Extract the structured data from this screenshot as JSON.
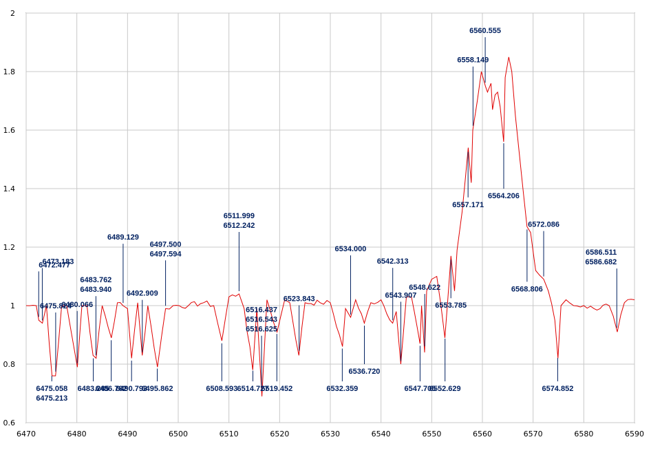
{
  "colors": {
    "spectrum": "#e00000",
    "annotation": "#002060",
    "grid": "#c8c8c8",
    "axis": "#000000"
  },
  "chart_data": {
    "type": "line",
    "title": "",
    "xlabel": "",
    "ylabel": "",
    "xlim": [
      6470,
      6590
    ],
    "ylim": [
      0.6,
      2.0
    ],
    "grid": true,
    "x_ticks": [
      "6470",
      "6480",
      "6490",
      "6500",
      "6510",
      "6520",
      "6530",
      "6540",
      "6550",
      "6560",
      "6570",
      "6580",
      "6590"
    ],
    "y_ticks": [
      "0.6",
      "0.8",
      "1",
      "1.2",
      "1.4",
      "1.6",
      "1.8",
      "2"
    ],
    "series": [
      {
        "name": "",
        "x": [
          6470,
          6472,
          6472.5,
          6473.2,
          6474,
          6475.1,
          6475.8,
          6477,
          6478,
          6480.1,
          6481,
          6482,
          6483.2,
          6483.8,
          6485,
          6486.8,
          6488,
          6489.1,
          6490,
          6490.8,
          6492,
          6492.9,
          6494,
          6495.9,
          6497.5,
          6499,
          6502,
          6505,
          6507,
          6508.6,
          6510,
          6512,
          6513,
          6514.7,
          6515.5,
          6516.5,
          6517.5,
          6519.5,
          6521,
          6522,
          6523.8,
          6525,
          6528,
          6530,
          6532.4,
          6533,
          6534,
          6535,
          6536.7,
          6538,
          6540,
          6542.3,
          6543,
          6543.9,
          6545,
          6546,
          6547.7,
          6548,
          6548.6,
          6549,
          6550,
          6551,
          6552.6,
          6553.8,
          6554.5,
          6555,
          6556,
          6557.2,
          6557.8,
          6558.1,
          6559,
          6559.8,
          6560.6,
          6561,
          6561.7,
          6562,
          6562.5,
          6563,
          6563.5,
          6564.2,
          6564.5,
          6565.2,
          6565.8,
          6566.5,
          6568,
          6568.8,
          6569.5,
          6570.5,
          6572.1,
          6573,
          6574.3,
          6574.9,
          6575.5,
          6576.5,
          6578,
          6580,
          6582,
          6585,
          6586.6,
          6588,
          6590
        ],
        "values": [
          1.0,
          1.0,
          0.95,
          0.94,
          1.0,
          0.76,
          0.76,
          1.0,
          1.0,
          0.79,
          1.0,
          1.0,
          0.83,
          0.82,
          1.0,
          0.89,
          1.01,
          1.0,
          0.99,
          0.82,
          1.01,
          0.83,
          1.0,
          0.79,
          0.99,
          1.0,
          1.0,
          1.01,
          1.0,
          0.88,
          1.03,
          1.04,
          0.99,
          0.78,
          0.99,
          0.69,
          1.02,
          0.91,
          1.02,
          1.01,
          0.83,
          1.01,
          1.01,
          1.01,
          0.86,
          0.99,
          0.96,
          1.02,
          0.94,
          1.01,
          1.02,
          0.94,
          0.98,
          0.8,
          1.03,
          1.03,
          0.87,
          1.0,
          0.84,
          1.05,
          1.09,
          1.1,
          0.89,
          1.17,
          1.05,
          1.19,
          1.32,
          1.54,
          1.42,
          1.6,
          1.7,
          1.8,
          1.75,
          1.73,
          1.76,
          1.67,
          1.72,
          1.73,
          1.68,
          1.56,
          1.78,
          1.85,
          1.8,
          1.65,
          1.4,
          1.27,
          1.25,
          1.12,
          1.09,
          1.05,
          0.95,
          0.82,
          1.0,
          1.02,
          1.0,
          1.0,
          0.99,
          1.0,
          0.91,
          1.01,
          1.02
        ]
      }
    ],
    "annotations": [
      {
        "x": 6472.477,
        "lines": [
          "6472.477"
        ]
      },
      {
        "x": 6473.183,
        "lines": [
          "6473.183"
        ]
      },
      {
        "x": 6475.824,
        "lines": [
          "6475.824"
        ]
      },
      {
        "x": 6475.058,
        "lines": [
          "6475.058",
          "6475.213"
        ]
      },
      {
        "x": 6480.066,
        "lines": [
          "6480.066"
        ]
      },
      {
        "x": 6483.762,
        "lines": [
          "6483.762",
          "6483.940"
        ]
      },
      {
        "x": 6483.245,
        "lines": [
          "6483.245"
        ]
      },
      {
        "x": 6486.782,
        "lines": [
          "6486.782"
        ]
      },
      {
        "x": 6489.129,
        "lines": [
          "6489.129"
        ]
      },
      {
        "x": 6490.793,
        "lines": [
          "6490.793"
        ]
      },
      {
        "x": 6492.909,
        "lines": [
          "6492.909"
        ]
      },
      {
        "x": 6495.862,
        "lines": [
          "6495.862"
        ]
      },
      {
        "x": 6497.5,
        "lines": [
          "6497.500",
          "6497.594"
        ]
      },
      {
        "x": 6508.593,
        "lines": [
          "6508.593"
        ]
      },
      {
        "x": 6511.999,
        "lines": [
          "6511.999",
          "6512.242"
        ]
      },
      {
        "x": 6514.727,
        "lines": [
          "6514.727"
        ]
      },
      {
        "x": 6516.437,
        "lines": [
          "6516.437",
          "6516.543",
          "6516.625"
        ]
      },
      {
        "x": 6519.452,
        "lines": [
          "6519.452"
        ]
      },
      {
        "x": 6523.843,
        "lines": [
          "6523.843"
        ]
      },
      {
        "x": 6532.359,
        "lines": [
          "6532.359"
        ]
      },
      {
        "x": 6534.0,
        "lines": [
          "6534.000"
        ]
      },
      {
        "x": 6536.72,
        "lines": [
          "6536.720"
        ]
      },
      {
        "x": 6542.313,
        "lines": [
          "6542.313"
        ]
      },
      {
        "x": 6543.907,
        "lines": [
          "6543.907"
        ]
      },
      {
        "x": 6547.705,
        "lines": [
          "6547.705"
        ]
      },
      {
        "x": 6548.622,
        "lines": [
          "6548.622"
        ]
      },
      {
        "x": 6552.629,
        "lines": [
          "6552.629"
        ]
      },
      {
        "x": 6553.785,
        "lines": [
          "6553.785"
        ]
      },
      {
        "x": 6557.171,
        "lines": [
          "6557.171"
        ]
      },
      {
        "x": 6558.149,
        "lines": [
          "6558.149"
        ]
      },
      {
        "x": 6560.555,
        "lines": [
          "6560.555"
        ]
      },
      {
        "x": 6564.206,
        "lines": [
          "6564.206"
        ]
      },
      {
        "x": 6568.806,
        "lines": [
          "6568.806"
        ]
      },
      {
        "x": 6572.086,
        "lines": [
          "6572.086"
        ]
      },
      {
        "x": 6574.852,
        "lines": [
          "6574.852"
        ]
      },
      {
        "x": 6586.511,
        "lines": [
          "6586.511",
          "6586.682"
        ]
      }
    ]
  }
}
